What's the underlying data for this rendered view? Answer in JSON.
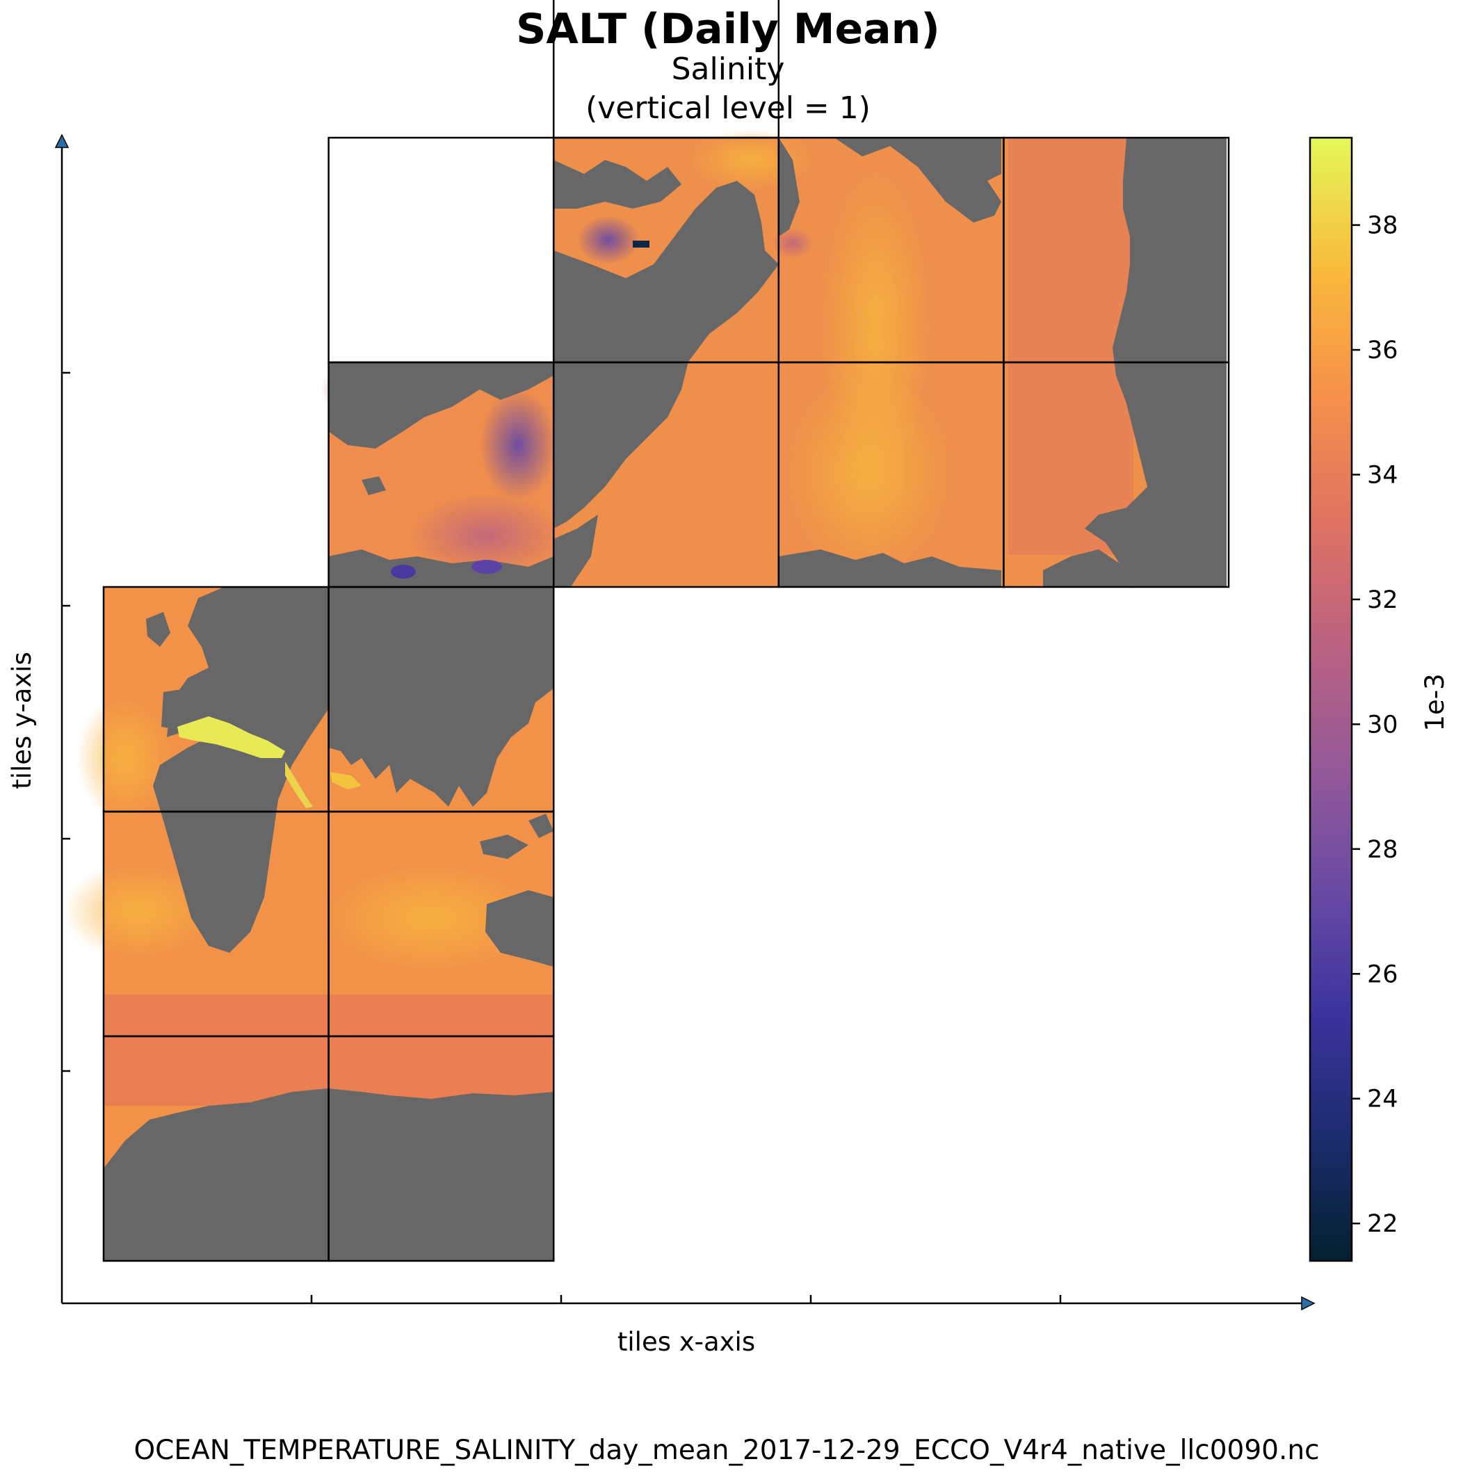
{
  "chart_data": {
    "type": "heatmap",
    "title": "SALT (Daily Mean)",
    "subtitle_line1": "Salinity",
    "subtitle_line2": "(vertical level = 1)",
    "xlabel": "tiles x-axis",
    "ylabel": "tiles y-axis",
    "footer": "OCEAN_TEMPERATURE_SALINITY_day_mean_2017-12-29_ECCO_V4r4_native_llc0090.nc",
    "colorbar": {
      "label": "1e-3",
      "range": [
        21.4,
        39.4
      ],
      "ticks": [
        22,
        24,
        26,
        28,
        30,
        32,
        34,
        36,
        38
      ],
      "tick_labels": [
        "22",
        "24",
        "26",
        "28",
        "30",
        "32",
        "34",
        "36",
        "38"
      ],
      "colormap": [
        "#03202f",
        "#1c2c6e",
        "#3c339e",
        "#694aa4",
        "#955998",
        "#bb6282",
        "#e07362",
        "#f6904a",
        "#f9b83c",
        "#e5f85a"
      ]
    },
    "land_color": "#676767",
    "grid": true,
    "tile_grid": {
      "tile_columns": [
        {
          "column": 0,
          "rows_from_bottom": [
            0,
            1,
            2
          ]
        },
        {
          "column": 1,
          "rows_from_bottom": [
            0,
            1,
            2,
            3,
            4
          ]
        },
        {
          "column": 2,
          "rows_from_bottom": [
            3,
            4,
            5,
            6
          ]
        },
        {
          "column": 3,
          "rows_from_bottom": [
            3,
            4
          ]
        },
        {
          "column": 4,
          "rows_from_bottom": [
            3,
            4
          ]
        }
      ]
    }
  }
}
